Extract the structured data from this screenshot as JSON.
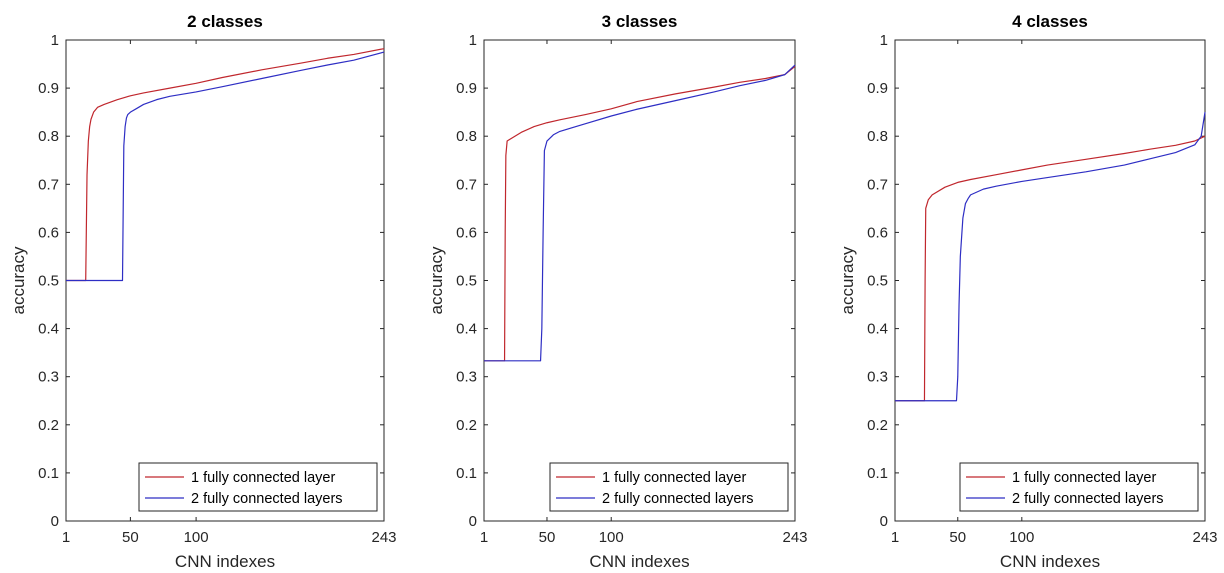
{
  "chart_data": [
    {
      "type": "line",
      "title": "2 classes",
      "xlabel": "CNN indexes",
      "ylabel": "accuracy",
      "xlim": [
        1,
        243
      ],
      "ylim": [
        0,
        1
      ],
      "xticks": [
        1,
        50,
        100,
        243
      ],
      "yticks": [
        0,
        0.1,
        0.2,
        0.3,
        0.4,
        0.5,
        0.6,
        0.7,
        0.8,
        0.9,
        1
      ],
      "legend_position": "bottom-right",
      "grid": false,
      "series": [
        {
          "name": "1 fully connected layer",
          "color": "#c0272d",
          "x": [
            1,
            16,
            17,
            18,
            19,
            20,
            22,
            25,
            30,
            40,
            50,
            60,
            80,
            100,
            120,
            150,
            180,
            200,
            220,
            243
          ],
          "y": [
            0.5,
            0.5,
            0.72,
            0.79,
            0.82,
            0.835,
            0.85,
            0.86,
            0.866,
            0.876,
            0.884,
            0.89,
            0.9,
            0.91,
            0.922,
            0.938,
            0.952,
            0.962,
            0.97,
            0.982
          ]
        },
        {
          "name": "2 fully connected layers",
          "color": "#2e2ec4",
          "x": [
            1,
            44,
            45,
            46,
            47,
            48,
            50,
            55,
            60,
            70,
            80,
            100,
            120,
            150,
            180,
            200,
            220,
            243
          ],
          "y": [
            0.5,
            0.5,
            0.78,
            0.82,
            0.838,
            0.845,
            0.85,
            0.858,
            0.866,
            0.876,
            0.883,
            0.892,
            0.903,
            0.92,
            0.937,
            0.948,
            0.958,
            0.975
          ]
        }
      ]
    },
    {
      "type": "line",
      "title": "3 classes",
      "xlabel": "CNN indexes",
      "ylabel": "accuracy",
      "xlim": [
        1,
        243
      ],
      "ylim": [
        0,
        1
      ],
      "xticks": [
        1,
        50,
        100,
        243
      ],
      "yticks": [
        0,
        0.1,
        0.2,
        0.3,
        0.4,
        0.5,
        0.6,
        0.7,
        0.8,
        0.9,
        1
      ],
      "legend_position": "bottom-right",
      "grid": false,
      "series": [
        {
          "name": "1 fully connected layer",
          "color": "#c0272d",
          "x": [
            1,
            17,
            17.5,
            18,
            19,
            22,
            30,
            40,
            50,
            60,
            80,
            100,
            120,
            150,
            180,
            200,
            220,
            235,
            243
          ],
          "y": [
            0.333,
            0.333,
            0.6,
            0.76,
            0.79,
            0.795,
            0.808,
            0.82,
            0.828,
            0.834,
            0.845,
            0.857,
            0.872,
            0.888,
            0.902,
            0.912,
            0.92,
            0.928,
            0.945
          ]
        },
        {
          "name": "2 fully connected layers",
          "color": "#2e2ec4",
          "x": [
            1,
            45,
            46,
            47,
            48,
            50,
            55,
            60,
            80,
            100,
            120,
            150,
            180,
            200,
            220,
            235,
            243
          ],
          "y": [
            0.333,
            0.333,
            0.4,
            0.6,
            0.77,
            0.79,
            0.803,
            0.81,
            0.826,
            0.842,
            0.856,
            0.874,
            0.892,
            0.905,
            0.916,
            0.928,
            0.948
          ]
        }
      ]
    },
    {
      "type": "line",
      "title": "4 classes",
      "xlabel": "CNN indexes",
      "ylabel": "accuracy",
      "xlim": [
        1,
        243
      ],
      "ylim": [
        0,
        1
      ],
      "xticks": [
        1,
        50,
        100,
        243
      ],
      "yticks": [
        0,
        0.1,
        0.2,
        0.3,
        0.4,
        0.5,
        0.6,
        0.7,
        0.8,
        0.9,
        1
      ],
      "legend_position": "bottom-right",
      "grid": false,
      "series": [
        {
          "name": "1 fully connected layer",
          "color": "#c0272d",
          "x": [
            1,
            24,
            24.5,
            25,
            27,
            30,
            40,
            50,
            60,
            80,
            100,
            120,
            150,
            180,
            200,
            220,
            235,
            243
          ],
          "y": [
            0.25,
            0.25,
            0.5,
            0.65,
            0.668,
            0.678,
            0.694,
            0.704,
            0.71,
            0.72,
            0.73,
            0.74,
            0.752,
            0.764,
            0.773,
            0.781,
            0.79,
            0.8
          ]
        },
        {
          "name": "2 fully connected layers",
          "color": "#2e2ec4",
          "x": [
            1,
            49,
            50,
            51,
            52,
            54,
            56,
            58,
            60,
            70,
            80,
            100,
            120,
            150,
            180,
            200,
            220,
            235,
            240,
            243
          ],
          "y": [
            0.25,
            0.25,
            0.3,
            0.45,
            0.55,
            0.63,
            0.66,
            0.67,
            0.678,
            0.69,
            0.696,
            0.706,
            0.714,
            0.726,
            0.74,
            0.753,
            0.766,
            0.782,
            0.8,
            0.85
          ]
        }
      ]
    }
  ]
}
